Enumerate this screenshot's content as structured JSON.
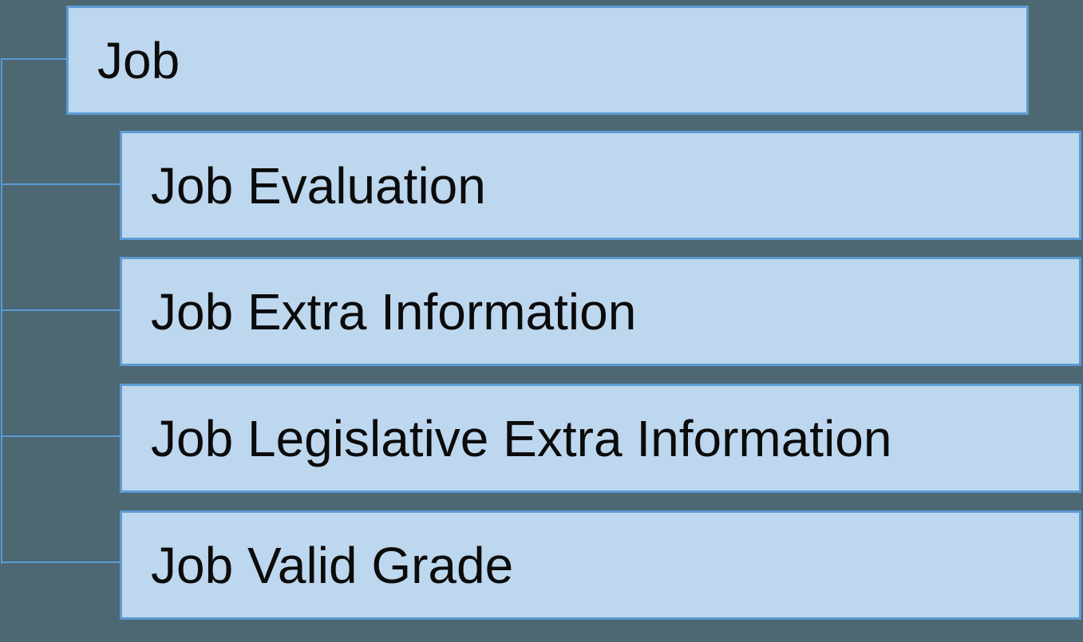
{
  "diagram": {
    "type": "hierarchy",
    "colors": {
      "background": "#4D6872",
      "node_fill": "#BDD7EE",
      "node_border": "#5B9BD5",
      "connector": "#5B9BD5",
      "text": "#0B0B0B"
    },
    "root": {
      "label": "Job"
    },
    "children": [
      {
        "label": "Job Evaluation"
      },
      {
        "label": "Job Extra Information"
      },
      {
        "label": "Job Legislative Extra Information"
      },
      {
        "label": "Job Valid Grade"
      }
    ]
  }
}
